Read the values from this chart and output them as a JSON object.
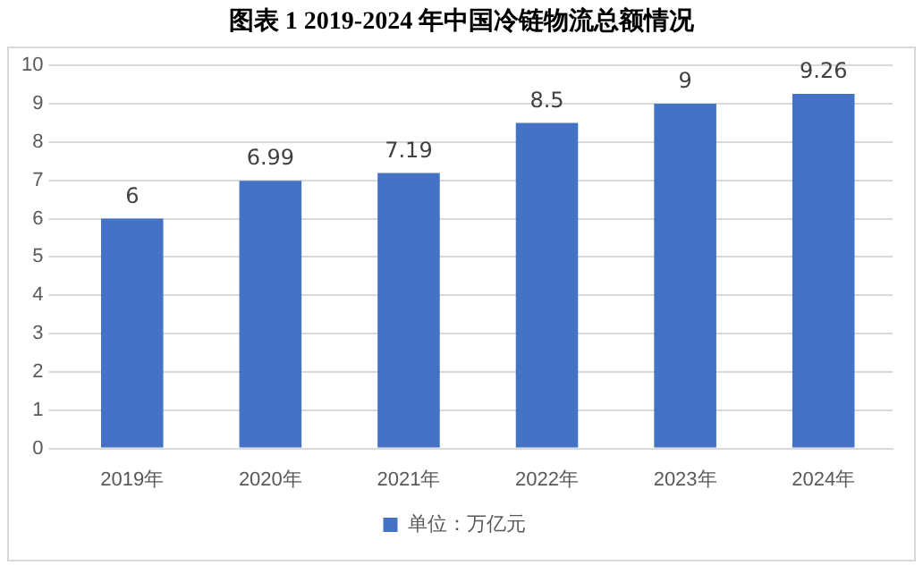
{
  "chart_data": {
    "type": "bar",
    "title": "图表 1    2019-2024 年中国冷链物流总额情况",
    "categories": [
      "2019年",
      "2020年",
      "2021年",
      "2022年",
      "2023年",
      "2024年"
    ],
    "series": [
      {
        "name": "单位：万亿元",
        "color": "#4472c4",
        "values": [
          6,
          6.99,
          7.19,
          8.5,
          9,
          9.26
        ]
      }
    ],
    "ylim": [
      0,
      10
    ],
    "yticks": [
      0,
      1,
      2,
      3,
      4,
      5,
      6,
      7,
      8,
      9,
      10
    ],
    "grid": "y",
    "legend": "bottom",
    "data_labels": true
  }
}
